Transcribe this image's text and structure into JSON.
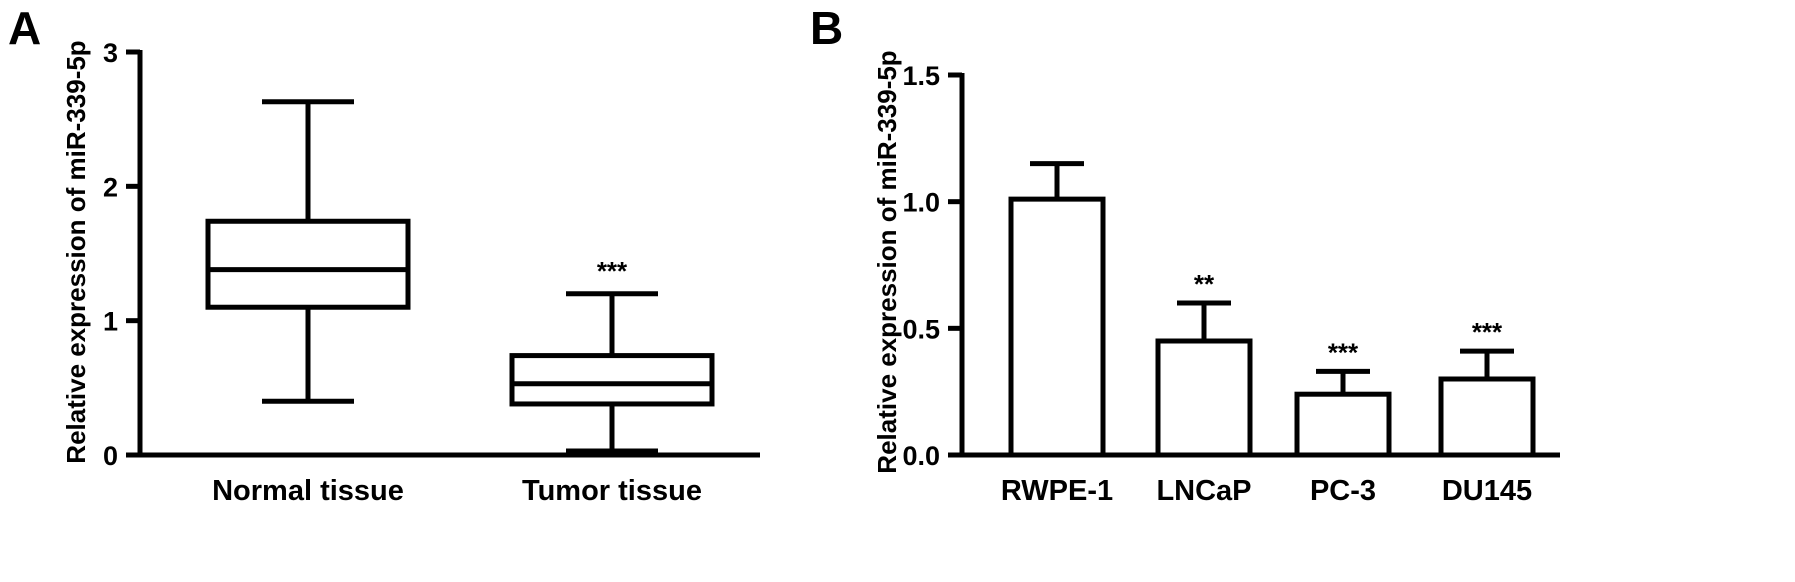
{
  "chart_data": [
    {
      "panel": "A",
      "type": "box",
      "ylabel": "Relative expression of miR-339-5p",
      "ylim": [
        0,
        3
      ],
      "yticks": [
        "0",
        "1",
        "2",
        "3"
      ],
      "categories": [
        "Normal tissue",
        "Tumor tissue"
      ],
      "boxes": [
        {
          "min": 0.4,
          "q1": 1.1,
          "median": 1.38,
          "q3": 1.74,
          "max": 2.63,
          "significance": ""
        },
        {
          "min": 0.03,
          "q1": 0.38,
          "median": 0.53,
          "q3": 0.74,
          "max": 1.2,
          "significance": "***"
        }
      ]
    },
    {
      "panel": "B",
      "type": "bar",
      "ylabel": "Relative expression of miR-339-5p",
      "ylim": [
        0,
        1.5
      ],
      "yticks": [
        "0.0",
        "0.5",
        "1.0",
        "1.5"
      ],
      "categories": [
        "RWPE-1",
        "LNCaP",
        "PC-3",
        "DU145"
      ],
      "values": [
        1.01,
        0.45,
        0.24,
        0.3
      ],
      "errors": [
        0.14,
        0.15,
        0.09,
        0.11
      ],
      "significance": [
        "",
        "**",
        "***",
        "***"
      ]
    }
  ]
}
